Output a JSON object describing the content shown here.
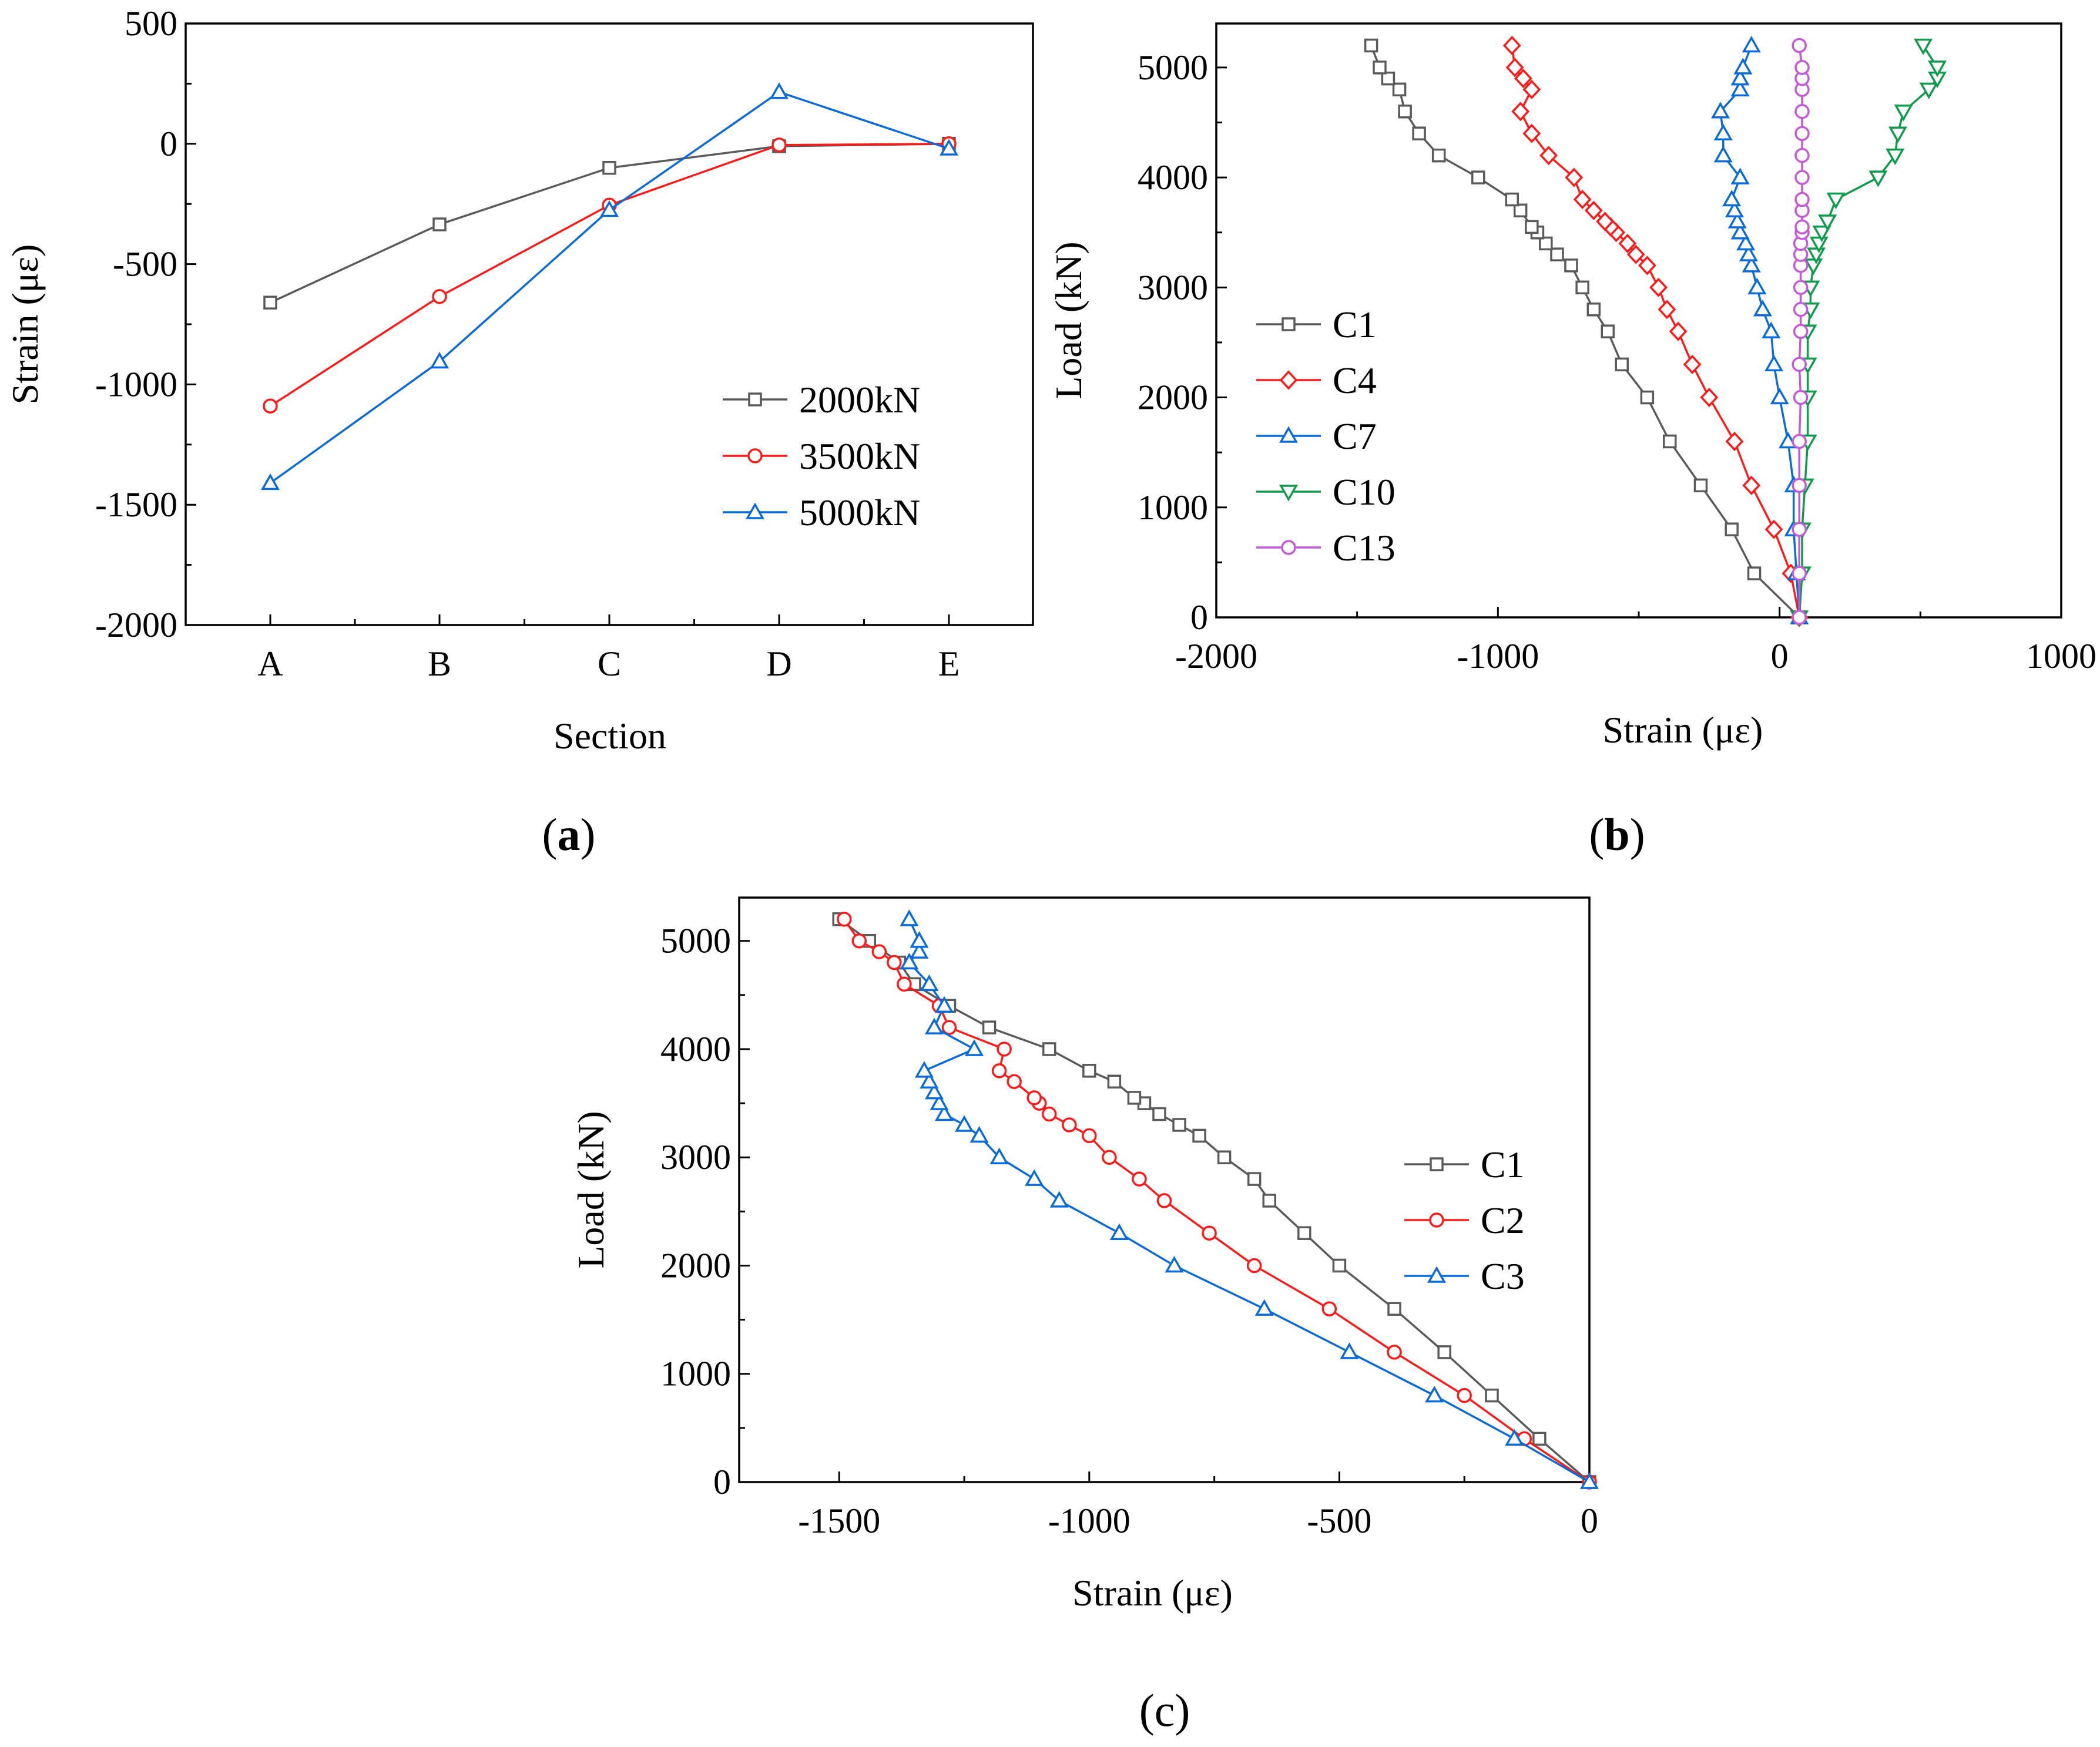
{
  "figure": {
    "panel_labels": [
      "a",
      "b",
      "c"
    ],
    "colors": {
      "gray": "#5a5a5a",
      "red": "#ff1a1a",
      "blue": "#0a6ad6",
      "green": "#109a4c",
      "purple": "#c45ad8",
      "axis": "#000000"
    }
  },
  "chart_data": [
    {
      "panel": "a",
      "type": "line",
      "xlabel": "Section",
      "ylabel": "Strain (με)",
      "categories": [
        "A",
        "B",
        "C",
        "D",
        "E"
      ],
      "ylim": [
        -2000,
        500
      ],
      "yticks": [
        -2000,
        -1500,
        -1000,
        -500,
        0,
        500
      ],
      "legend_position": "right",
      "series": [
        {
          "name": "2000kN",
          "color": "#5a5a5a",
          "marker": "square",
          "values": [
            -660,
            -335,
            -100,
            -10,
            0
          ]
        },
        {
          "name": "3500kN",
          "color": "#ff1a1a",
          "marker": "circle",
          "values": [
            -1090,
            -635,
            -255,
            -5,
            0
          ]
        },
        {
          "name": "5000kN",
          "color": "#0a6ad6",
          "marker": "triangle-up",
          "values": [
            -1410,
            -905,
            -275,
            215,
            -20
          ]
        }
      ]
    },
    {
      "panel": "b",
      "type": "line",
      "xlabel": "Strain (με)",
      "ylabel": "Load (kN)",
      "xlim": [
        -2000,
        1000
      ],
      "ylim": [
        0,
        5400
      ],
      "xticks": [
        -2000,
        -1000,
        0,
        1000
      ],
      "yticks": [
        0,
        1000,
        2000,
        3000,
        4000,
        5000
      ],
      "legend_position": "left",
      "series": [
        {
          "name": "C1",
          "color": "#5a5a5a",
          "marker": "square",
          "points": [
            [
              70,
              0
            ],
            [
              -90,
              400
            ],
            [
              -170,
              800
            ],
            [
              -280,
              1200
            ],
            [
              -390,
              1600
            ],
            [
              -470,
              2000
            ],
            [
              -560,
              2300
            ],
            [
              -610,
              2600
            ],
            [
              -660,
              2800
            ],
            [
              -700,
              3000
            ],
            [
              -740,
              3200
            ],
            [
              -790,
              3300
            ],
            [
              -830,
              3400
            ],
            [
              -860,
              3500
            ],
            [
              -880,
              3550
            ],
            [
              -920,
              3700
            ],
            [
              -950,
              3800
            ],
            [
              -1070,
              4000
            ],
            [
              -1210,
              4200
            ],
            [
              -1280,
              4400
            ],
            [
              -1330,
              4600
            ],
            [
              -1350,
              4800
            ],
            [
              -1390,
              4900
            ],
            [
              -1420,
              5000
            ],
            [
              -1450,
              5200
            ]
          ]
        },
        {
          "name": "C4",
          "color": "#ff1a1a",
          "marker": "diamond",
          "points": [
            [
              70,
              0
            ],
            [
              40,
              400
            ],
            [
              -20,
              800
            ],
            [
              -100,
              1200
            ],
            [
              -160,
              1600
            ],
            [
              -250,
              2000
            ],
            [
              -310,
              2300
            ],
            [
              -360,
              2600
            ],
            [
              -400,
              2800
            ],
            [
              -430,
              3000
            ],
            [
              -470,
              3200
            ],
            [
              -510,
              3300
            ],
            [
              -540,
              3400
            ],
            [
              -580,
              3500
            ],
            [
              -600,
              3550
            ],
            [
              -620,
              3600
            ],
            [
              -660,
              3700
            ],
            [
              -700,
              3800
            ],
            [
              -730,
              4000
            ],
            [
              -820,
              4200
            ],
            [
              -880,
              4400
            ],
            [
              -920,
              4600
            ],
            [
              -880,
              4800
            ],
            [
              -910,
              4900
            ],
            [
              -940,
              5000
            ],
            [
              -950,
              5200
            ]
          ]
        },
        {
          "name": "C7",
          "color": "#0a6ad6",
          "marker": "triangle-up",
          "points": [
            [
              70,
              0
            ],
            [
              60,
              400
            ],
            [
              50,
              800
            ],
            [
              50,
              1200
            ],
            [
              30,
              1600
            ],
            [
              0,
              2000
            ],
            [
              -20,
              2300
            ],
            [
              -30,
              2600
            ],
            [
              -60,
              2800
            ],
            [
              -80,
              3000
            ],
            [
              -100,
              3200
            ],
            [
              -110,
              3300
            ],
            [
              -120,
              3400
            ],
            [
              -140,
              3500
            ],
            [
              -150,
              3600
            ],
            [
              -160,
              3700
            ],
            [
              -170,
              3800
            ],
            [
              -140,
              4000
            ],
            [
              -200,
              4200
            ],
            [
              -200,
              4400
            ],
            [
              -210,
              4600
            ],
            [
              -140,
              4800
            ],
            [
              -140,
              4900
            ],
            [
              -130,
              5000
            ],
            [
              -100,
              5200
            ]
          ]
        },
        {
          "name": "C10",
          "color": "#109a4c",
          "marker": "triangle-down",
          "points": [
            [
              70,
              0
            ],
            [
              80,
              400
            ],
            [
              80,
              800
            ],
            [
              90,
              1200
            ],
            [
              100,
              1600
            ],
            [
              100,
              2000
            ],
            [
              100,
              2300
            ],
            [
              100,
              2600
            ],
            [
              110,
              2800
            ],
            [
              110,
              3000
            ],
            [
              120,
              3200
            ],
            [
              130,
              3300
            ],
            [
              140,
              3400
            ],
            [
              150,
              3500
            ],
            [
              170,
              3600
            ],
            [
              200,
              3800
            ],
            [
              350,
              4000
            ],
            [
              410,
              4200
            ],
            [
              420,
              4400
            ],
            [
              440,
              4600
            ],
            [
              530,
              4800
            ],
            [
              560,
              4900
            ],
            [
              560,
              5000
            ],
            [
              510,
              5200
            ]
          ]
        },
        {
          "name": "C13",
          "color": "#c45ad8",
          "marker": "circle",
          "points": [
            [
              70,
              0
            ],
            [
              70,
              400
            ],
            [
              70,
              800
            ],
            [
              70,
              1200
            ],
            [
              70,
              1600
            ],
            [
              75,
              2000
            ],
            [
              70,
              2300
            ],
            [
              75,
              2600
            ],
            [
              75,
              2800
            ],
            [
              75,
              3000
            ],
            [
              75,
              3200
            ],
            [
              75,
              3300
            ],
            [
              75,
              3400
            ],
            [
              80,
              3500
            ],
            [
              80,
              3550
            ],
            [
              80,
              3700
            ],
            [
              80,
              3800
            ],
            [
              80,
              4000
            ],
            [
              80,
              4200
            ],
            [
              80,
              4400
            ],
            [
              80,
              4600
            ],
            [
              80,
              4800
            ],
            [
              80,
              4900
            ],
            [
              80,
              5000
            ],
            [
              70,
              5200
            ]
          ]
        }
      ]
    },
    {
      "panel": "c",
      "type": "line",
      "xlabel": "Strain (με)",
      "ylabel": "Load (kN)",
      "xlim": [
        -1700,
        0
      ],
      "ylim": [
        0,
        5400
      ],
      "xticks": [
        -1500,
        -1000,
        -500,
        0
      ],
      "yticks": [
        0,
        1000,
        2000,
        3000,
        4000,
        5000
      ],
      "legend_position": "right",
      "series": [
        {
          "name": "C1",
          "color": "#5a5a5a",
          "marker": "square",
          "points": [
            [
              0,
              0
            ],
            [
              -100,
              400
            ],
            [
              -195,
              800
            ],
            [
              -290,
              1200
            ],
            [
              -390,
              1600
            ],
            [
              -500,
              2000
            ],
            [
              -570,
              2300
            ],
            [
              -640,
              2600
            ],
            [
              -670,
              2800
            ],
            [
              -730,
              3000
            ],
            [
              -780,
              3200
            ],
            [
              -820,
              3300
            ],
            [
              -860,
              3400
            ],
            [
              -890,
              3500
            ],
            [
              -910,
              3550
            ],
            [
              -950,
              3700
            ],
            [
              -1000,
              3800
            ],
            [
              -1080,
              4000
            ],
            [
              -1200,
              4200
            ],
            [
              -1280,
              4400
            ],
            [
              -1350,
              4600
            ],
            [
              -1380,
              4800
            ],
            [
              -1440,
              5000
            ],
            [
              -1500,
              5200
            ]
          ]
        },
        {
          "name": "C2",
          "color": "#ff1a1a",
          "marker": "circle",
          "points": [
            [
              0,
              0
            ],
            [
              -130,
              400
            ],
            [
              -250,
              800
            ],
            [
              -390,
              1200
            ],
            [
              -520,
              1600
            ],
            [
              -670,
              2000
            ],
            [
              -760,
              2300
            ],
            [
              -850,
              2600
            ],
            [
              -900,
              2800
            ],
            [
              -960,
              3000
            ],
            [
              -1000,
              3200
            ],
            [
              -1040,
              3300
            ],
            [
              -1080,
              3400
            ],
            [
              -1100,
              3500
            ],
            [
              -1110,
              3550
            ],
            [
              -1150,
              3700
            ],
            [
              -1180,
              3800
            ],
            [
              -1170,
              4000
            ],
            [
              -1280,
              4200
            ],
            [
              -1300,
              4400
            ],
            [
              -1370,
              4600
            ],
            [
              -1390,
              4800
            ],
            [
              -1420,
              4900
            ],
            [
              -1460,
              5000
            ],
            [
              -1490,
              5200
            ]
          ]
        },
        {
          "name": "C3",
          "color": "#0a6ad6",
          "marker": "triangle-up",
          "points": [
            [
              0,
              0
            ],
            [
              -150,
              400
            ],
            [
              -310,
              800
            ],
            [
              -480,
              1200
            ],
            [
              -650,
              1600
            ],
            [
              -830,
              2000
            ],
            [
              -940,
              2300
            ],
            [
              -1060,
              2600
            ],
            [
              -1110,
              2800
            ],
            [
              -1180,
              3000
            ],
            [
              -1220,
              3200
            ],
            [
              -1250,
              3300
            ],
            [
              -1290,
              3400
            ],
            [
              -1300,
              3500
            ],
            [
              -1310,
              3600
            ],
            [
              -1320,
              3700
            ],
            [
              -1330,
              3800
            ],
            [
              -1230,
              4000
            ],
            [
              -1310,
              4200
            ],
            [
              -1290,
              4400
            ],
            [
              -1320,
              4600
            ],
            [
              -1360,
              4800
            ],
            [
              -1340,
              4900
            ],
            [
              -1340,
              5000
            ],
            [
              -1360,
              5200
            ]
          ]
        }
      ]
    }
  ]
}
